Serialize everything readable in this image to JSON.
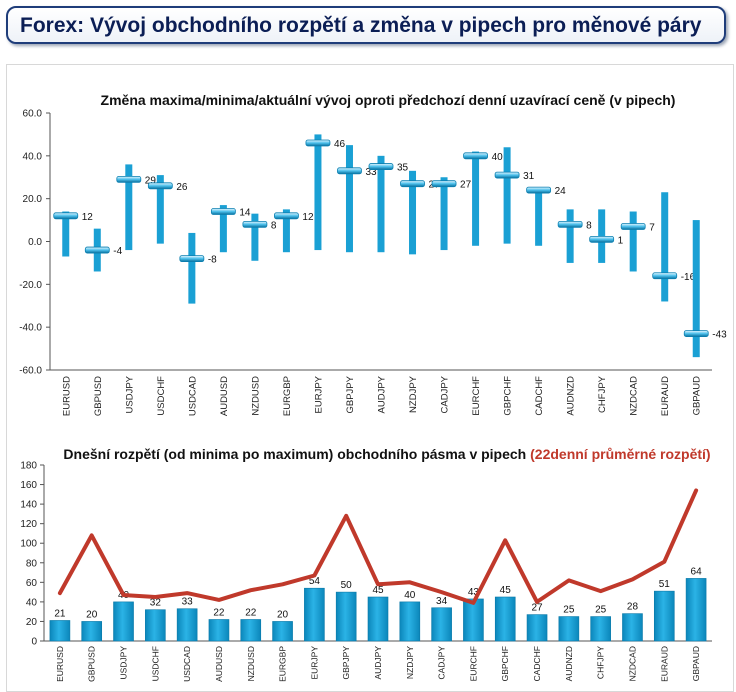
{
  "page_title": "Forex: Vývoj obchodního rozpětí a změna v pipech pro měnové páry",
  "colors": {
    "bar": "#1aa0d4",
    "bar_dark": "#0b7fb0",
    "line": "#c0392b",
    "title": "#0b1e55",
    "accent_red": "#c0392b"
  },
  "chart_data": [
    {
      "type": "bar",
      "subtype": "range-with-marker",
      "title": "Změna maxima/minima/aktuální vývoj oproti předchozí denní uzavírací ceně (v pipech)",
      "ylim": [
        -60,
        60
      ],
      "yticks": [
        "-60.0",
        "-40.0",
        "-20.0",
        "0.0",
        "20.0",
        "40.0",
        "60.0"
      ],
      "categories": [
        "EURUSD",
        "GBPUSD",
        "USDJPY",
        "USDCHF",
        "USDCAD",
        "AUDUSD",
        "NZDUSD",
        "EURGBP",
        "EURJPY",
        "GBPJPY",
        "AUDJPY",
        "NZDJPY",
        "CADJPY",
        "EURCHF",
        "GBPCHF",
        "CADCHF",
        "AUDNZD",
        "CHFJPY",
        "NZDCAD",
        "EURAUD",
        "GBPAUD"
      ],
      "series": [
        {
          "values_high": [
            14,
            6,
            36,
            31,
            4,
            17,
            13,
            15,
            50,
            45,
            40,
            33,
            30,
            42,
            44,
            25,
            15,
            15,
            14,
            23,
            10
          ]
        },
        {
          "values_low": [
            -7,
            -14,
            -4,
            -1,
            -29,
            -5,
            -9,
            -5,
            -4,
            -5,
            -5,
            -6,
            -4,
            -2,
            -1,
            -2,
            -10,
            -10,
            -14,
            -28,
            -54
          ]
        },
        {
          "values_current": [
            12,
            -4,
            29,
            26,
            -8,
            14,
            8,
            12,
            46,
            33,
            35,
            27,
            27,
            40,
            31,
            24,
            8,
            1,
            7,
            -16,
            -43
          ]
        }
      ],
      "labels": [
        "12",
        "-4",
        "29",
        "26",
        "-8",
        "14",
        "8",
        "12",
        "46",
        "33",
        "35",
        "27",
        "27",
        "40",
        "31",
        "24",
        "8",
        "1",
        "7",
        "-16",
        "-43"
      ]
    },
    {
      "type": "bar",
      "title_part1": "Dnešní rozpětí (od minima po maximum) obchodního pásma v pipech ",
      "title_part2": "(22denní průměrné rozpětí)",
      "ylim": [
        0,
        180
      ],
      "yticks": [
        "0",
        "20",
        "40",
        "60",
        "80",
        "100",
        "120",
        "140",
        "160",
        "180"
      ],
      "categories": [
        "EURUSD",
        "GBPUSD",
        "USDJPY",
        "USDCHF",
        "USDCAD",
        "AUDUSD",
        "NZDUSD",
        "EURGBP",
        "EURJPY",
        "GBPJPY",
        "AUDJPY",
        "NZDJPY",
        "CADJPY",
        "EURCHF",
        "GBPCHF",
        "CADCHF",
        "AUDNZD",
        "CHFJPY",
        "NZDCAD",
        "EURAUD",
        "GBPAUD"
      ],
      "series": [
        {
          "values": [
            21,
            20,
            40,
            32,
            33,
            22,
            22,
            20,
            54,
            50,
            45,
            40,
            34,
            43,
            45,
            27,
            25,
            25,
            28,
            51,
            64
          ]
        },
        {
          "values": [
            49,
            108,
            47,
            45,
            49,
            42,
            52,
            58,
            67,
            128,
            58,
            60,
            50,
            39,
            103,
            40,
            62,
            51,
            63,
            81,
            154
          ]
        }
      ],
      "labels": [
        "21",
        "20",
        "40",
        "32",
        "33",
        "22",
        "22",
        "20",
        "54",
        "50",
        "45",
        "40",
        "34",
        "43",
        "45",
        "27",
        "25",
        "25",
        "28",
        "51",
        "64"
      ]
    }
  ]
}
